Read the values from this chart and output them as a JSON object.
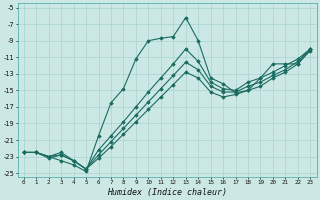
{
  "xlabel": "Humidex (Indice chaleur)",
  "xlim": [
    -0.5,
    23.5
  ],
  "ylim": [
    -25.5,
    -4.5
  ],
  "yticks": [
    -25,
    -23,
    -21,
    -19,
    -17,
    -15,
    -13,
    -11,
    -9,
    -7,
    -5
  ],
  "xticks": [
    0,
    1,
    2,
    3,
    4,
    5,
    6,
    7,
    8,
    9,
    10,
    11,
    12,
    13,
    14,
    15,
    16,
    17,
    18,
    19,
    20,
    21,
    22,
    23
  ],
  "bg_color": "#cce8e5",
  "grid_color": "#9ecece",
  "line_color": "#1a6b60",
  "x": [
    0,
    1,
    2,
    3,
    4,
    5,
    6,
    7,
    8,
    9,
    10,
    11,
    12,
    13,
    14,
    15,
    16,
    17,
    18,
    19,
    20,
    21,
    22,
    23
  ],
  "series": [
    [
      -22.5,
      -22.5,
      -23.0,
      -23.5,
      -24.0,
      -24.8,
      -20.5,
      -16.5,
      -14.8,
      -11.2,
      -9.0,
      -8.7,
      -8.5,
      -6.2,
      -9.0,
      -13.5,
      -14.2,
      -15.3,
      -15.0,
      -13.5,
      -11.8,
      -11.8,
      -11.8,
      -10.0
    ],
    [
      -22.5,
      -22.5,
      -23.2,
      -22.8,
      -23.5,
      -24.5,
      -23.2,
      -21.8,
      -20.3,
      -18.8,
      -17.3,
      -15.8,
      -14.3,
      -12.8,
      -13.5,
      -15.2,
      -15.8,
      -15.5,
      -15.0,
      -14.5,
      -13.5,
      -12.8,
      -11.8,
      -10.2
    ],
    [
      -22.5,
      -22.5,
      -23.0,
      -22.8,
      -23.5,
      -24.5,
      -22.8,
      -21.2,
      -19.6,
      -18.0,
      -16.4,
      -14.8,
      -13.2,
      -11.6,
      -12.5,
      -14.5,
      -15.2,
      -15.2,
      -14.5,
      -14.0,
      -13.2,
      -12.5,
      -11.5,
      -10.0
    ],
    [
      -22.5,
      -22.5,
      -23.0,
      -22.5,
      -23.5,
      -24.5,
      -22.2,
      -20.5,
      -18.8,
      -17.0,
      -15.2,
      -13.5,
      -11.8,
      -10.0,
      -11.5,
      -14.0,
      -14.8,
      -15.0,
      -14.0,
      -13.5,
      -12.8,
      -12.0,
      -11.2,
      -10.0
    ]
  ]
}
